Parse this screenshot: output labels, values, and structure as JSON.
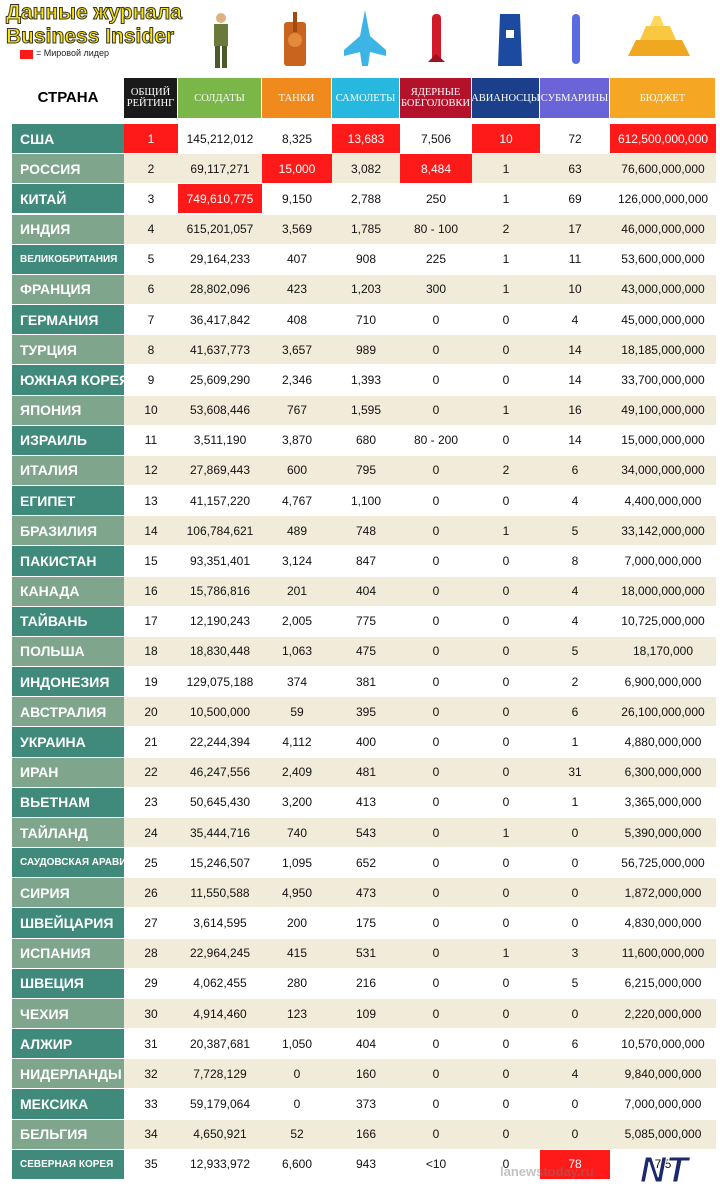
{
  "header": {
    "title_line1": "Данные журнала",
    "title_line2": "Business Insider",
    "legend": "= Мировой лидер"
  },
  "table": {
    "columns": [
      "СТРАНА",
      "ОБЩИЙ РЕЙТИНГ",
      "СОЛДАТЫ",
      "ТАНКИ",
      "САМОЛЕТЫ",
      "ЯДЕРНЫЕ БОЕГОЛОВКИ",
      "АВИАНОСЦЫ",
      "СУБМАРИНЫ",
      "БЮДЖЕТ"
    ],
    "rows": [
      [
        "США",
        "1",
        "145,212,012",
        "8,325",
        "13,683",
        "7,506",
        "10",
        "72",
        "612,500,000,000"
      ],
      [
        "РОССИЯ",
        "2",
        "69,117,271",
        "15,000",
        "3,082",
        "8,484",
        "1",
        "63",
        "76,600,000,000"
      ],
      [
        "КИТАЙ",
        "3",
        "749,610,775",
        "9,150",
        "2,788",
        "250",
        "1",
        "69",
        "126,000,000,000"
      ],
      [
        "ИНДИЯ",
        "4",
        "615,201,057",
        "3,569",
        "1,785",
        "80 - 100",
        "2",
        "17",
        "46,000,000,000"
      ],
      [
        "ВЕЛИКОБРИТАНИЯ",
        "5",
        "29,164,233",
        "407",
        "908",
        "225",
        "1",
        "11",
        "53,600,000,000"
      ],
      [
        "ФРАНЦИЯ",
        "6",
        "28,802,096",
        "423",
        "1,203",
        "300",
        "1",
        "10",
        "43,000,000,000"
      ],
      [
        "ГЕРМАНИЯ",
        "7",
        "36,417,842",
        "408",
        "710",
        "0",
        "0",
        "4",
        "45,000,000,000"
      ],
      [
        "ТУРЦИЯ",
        "8",
        "41,637,773",
        "3,657",
        "989",
        "0",
        "0",
        "14",
        "18,185,000,000"
      ],
      [
        "ЮЖНАЯ КОРЕЯ",
        "9",
        "25,609,290",
        "2,346",
        "1,393",
        "0",
        "0",
        "14",
        "33,700,000,000"
      ],
      [
        "ЯПОНИЯ",
        "10",
        "53,608,446",
        "767",
        "1,595",
        "0",
        "1",
        "16",
        "49,100,000,000"
      ],
      [
        "ИЗРАИЛЬ",
        "11",
        "3,511,190",
        "3,870",
        "680",
        "80 - 200",
        "0",
        "14",
        "15,000,000,000"
      ],
      [
        "ИТАЛИЯ",
        "12",
        "27,869,443",
        "600",
        "795",
        "0",
        "2",
        "6",
        "34,000,000,000"
      ],
      [
        "ЕГИПЕТ",
        "13",
        "41,157,220",
        "4,767",
        "1,100",
        "0",
        "0",
        "4",
        "4,400,000,000"
      ],
      [
        "БРАЗИЛИЯ",
        "14",
        "106,784,621",
        "489",
        "748",
        "0",
        "1",
        "5",
        "33,142,000,000"
      ],
      [
        "ПАКИСТАН",
        "15",
        "93,351,401",
        "3,124",
        "847",
        "0",
        "0",
        "8",
        "7,000,000,000"
      ],
      [
        "КАНАДА",
        "16",
        "15,786,816",
        "201",
        "404",
        "0",
        "0",
        "4",
        "18,000,000,000"
      ],
      [
        "ТАЙВАНЬ",
        "17",
        "12,190,243",
        "2,005",
        "775",
        "0",
        "0",
        "4",
        "10,725,000,000"
      ],
      [
        "ПОЛЬША",
        "18",
        "18,830,448",
        "1,063",
        "475",
        "0",
        "0",
        "5",
        "18,170,000"
      ],
      [
        "ИНДОНЕЗИЯ",
        "19",
        "129,075,188",
        "374",
        "381",
        "0",
        "0",
        "2",
        "6,900,000,000"
      ],
      [
        "АВСТРАЛИЯ",
        "20",
        "10,500,000",
        "59",
        "395",
        "0",
        "0",
        "6",
        "26,100,000,000"
      ],
      [
        "УКРАИНА",
        "21",
        "22,244,394",
        "4,112",
        "400",
        "0",
        "0",
        "1",
        "4,880,000,000"
      ],
      [
        "ИРАН",
        "22",
        "46,247,556",
        "2,409",
        "481",
        "0",
        "0",
        "31",
        "6,300,000,000"
      ],
      [
        "ВЬЕТНАМ",
        "23",
        "50,645,430",
        "3,200",
        "413",
        "0",
        "0",
        "1",
        "3,365,000,000"
      ],
      [
        "ТАЙЛАНД",
        "24",
        "35,444,716",
        "740",
        "543",
        "0",
        "1",
        "0",
        "5,390,000,000"
      ],
      [
        "САУДОВСКАЯ АРАВИЯ",
        "25",
        "15,246,507",
        "1,095",
        "652",
        "0",
        "0",
        "0",
        "56,725,000,000"
      ],
      [
        "СИРИЯ",
        "26",
        "11,550,588",
        "4,950",
        "473",
        "0",
        "0",
        "0",
        "1,872,000,000"
      ],
      [
        "ШВЕЙЦАРИЯ",
        "27",
        "3,614,595",
        "200",
        "175",
        "0",
        "0",
        "0",
        "4,830,000,000"
      ],
      [
        "ИСПАНИЯ",
        "28",
        "22,964,245",
        "415",
        "531",
        "0",
        "1",
        "3",
        "11,600,000,000"
      ],
      [
        "ШВЕЦИЯ",
        "29",
        "4,062,455",
        "280",
        "216",
        "0",
        "0",
        "5",
        "6,215,000,000"
      ],
      [
        "ЧЕХИЯ",
        "30",
        "4,914,460",
        "123",
        "109",
        "0",
        "0",
        "0",
        "2,220,000,000"
      ],
      [
        "АЛЖИР",
        "31",
        "20,387,681",
        "1,050",
        "404",
        "0",
        "0",
        "6",
        "10,570,000,000"
      ],
      [
        "НИДЕРЛАНДЫ",
        "32",
        "7,728,129",
        "0",
        "160",
        "0",
        "0",
        "4",
        "9,840,000,000"
      ],
      [
        "МЕКСИКА",
        "33",
        "59,179,064",
        "0",
        "373",
        "0",
        "0",
        "0",
        "7,000,000,000"
      ],
      [
        "БЕЛЬГИЯ",
        "34",
        "4,650,921",
        "52",
        "166",
        "0",
        "0",
        "0",
        "5,085,000,000"
      ],
      [
        "СЕВЕРНАЯ КОРЕЯ",
        "35",
        "12,933,972",
        "6,600",
        "943",
        "<10",
        "0",
        "78",
        "7,5"
      ]
    ],
    "leaders": [
      [
        0,
        1
      ],
      [
        0,
        4
      ],
      [
        0,
        6
      ],
      [
        0,
        8
      ],
      [
        1,
        3
      ],
      [
        1,
        5
      ],
      [
        2,
        2
      ],
      [
        34,
        7
      ]
    ]
  },
  "footer": {
    "watermark": "lanewstoday.ru",
    "logo": "NT"
  }
}
